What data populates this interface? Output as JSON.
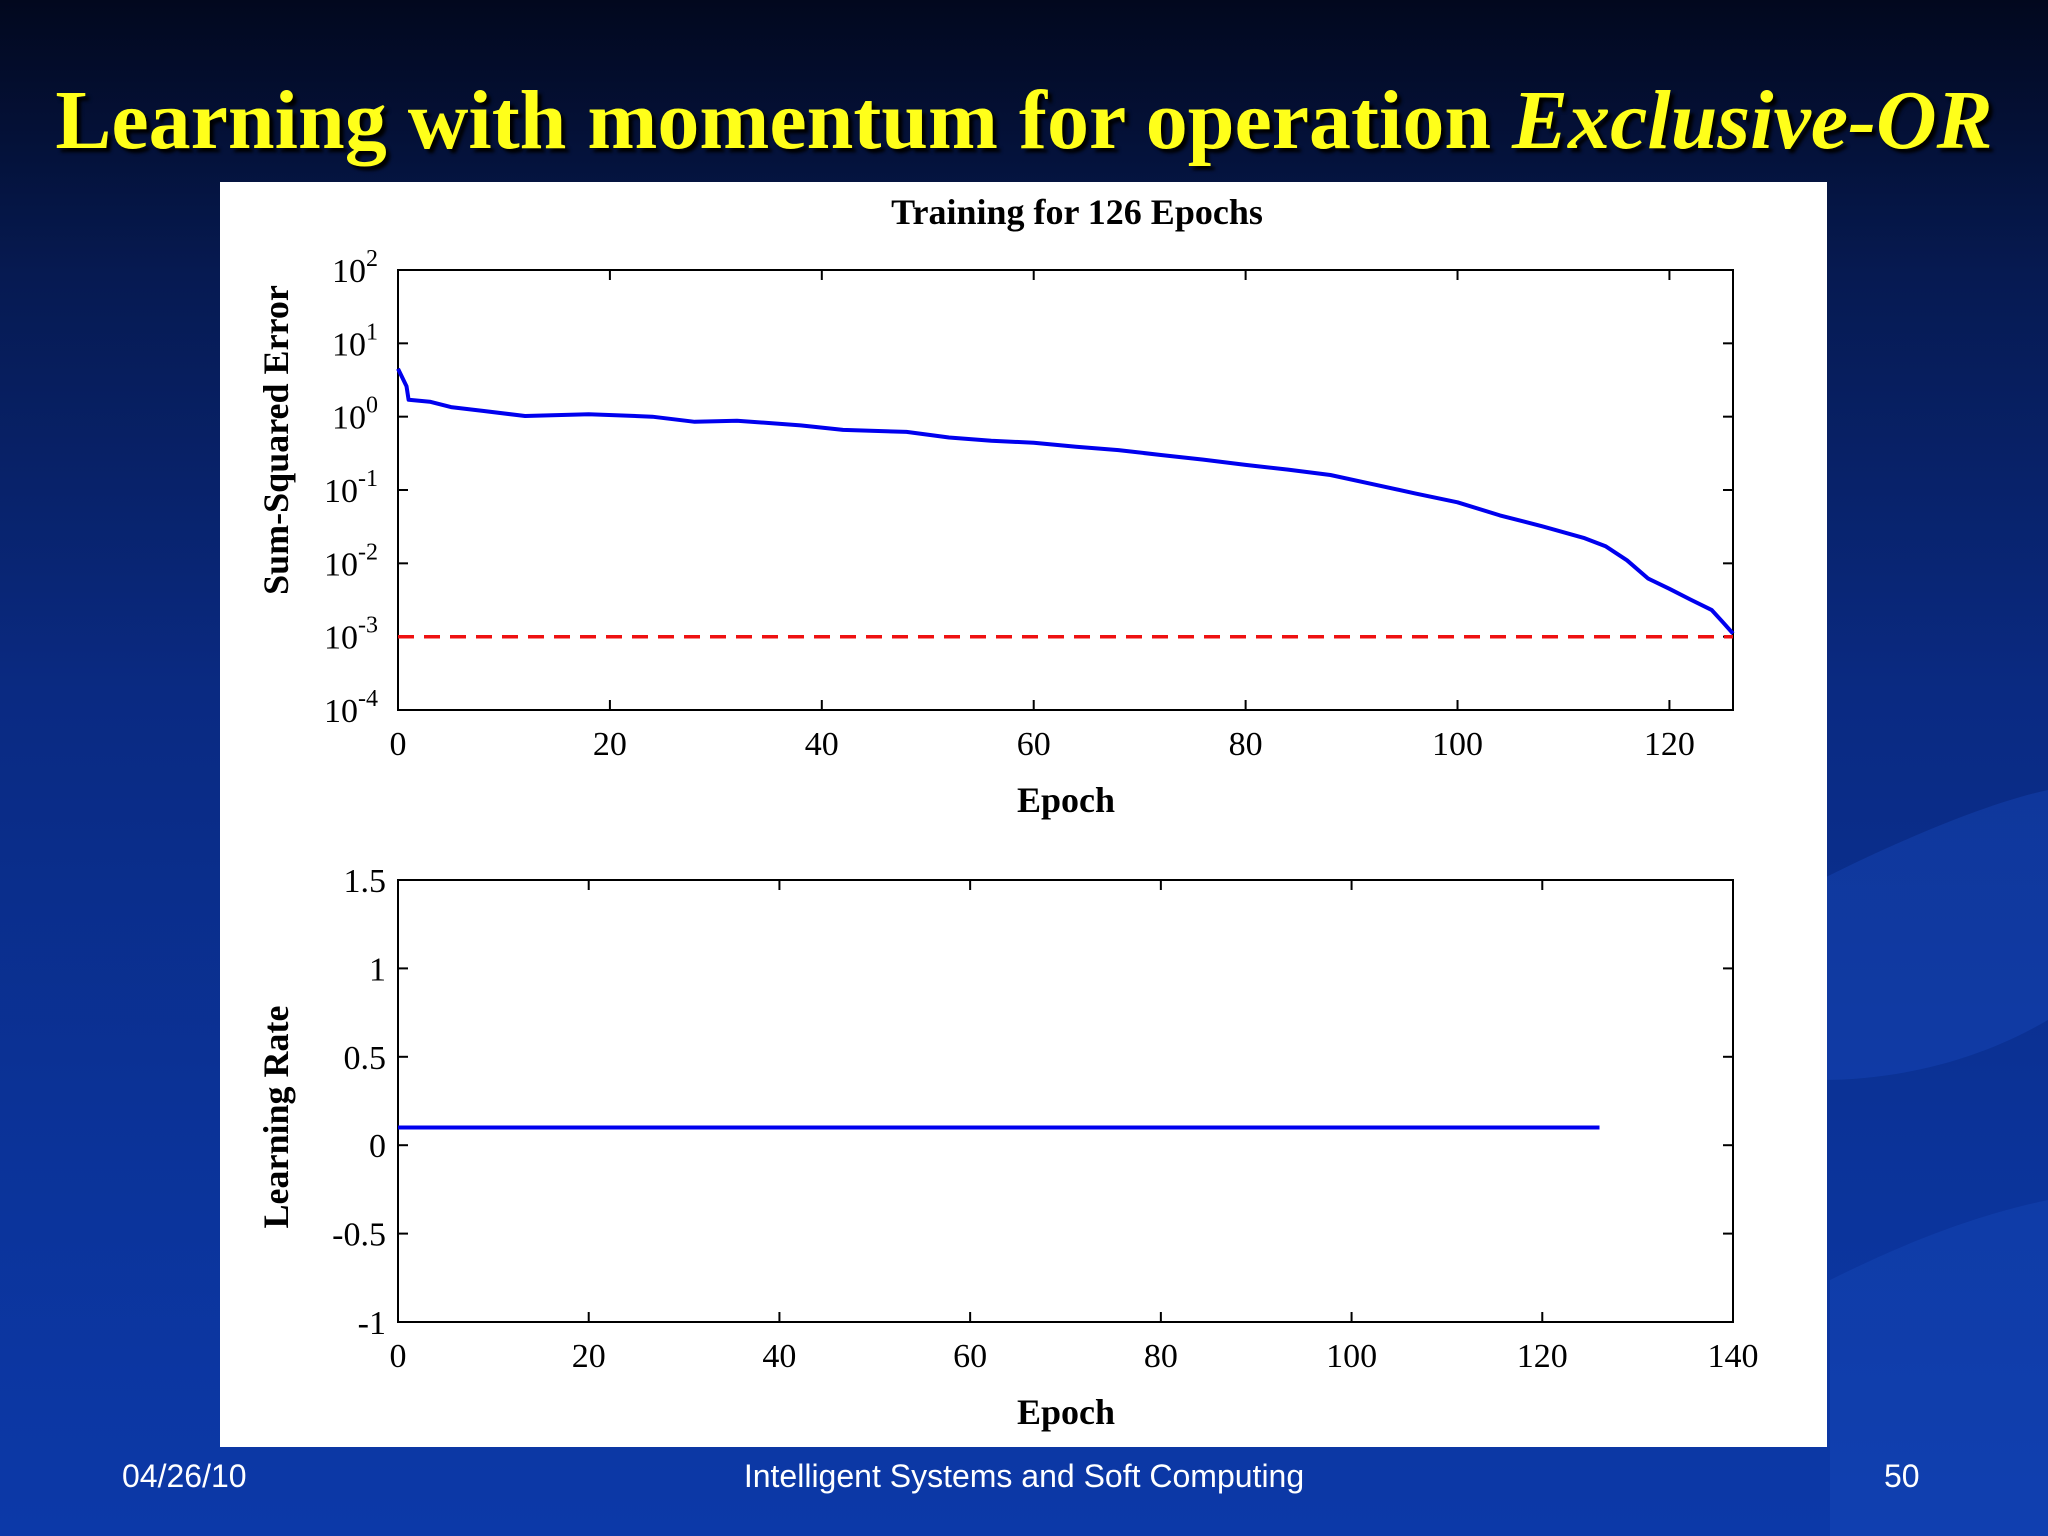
{
  "slide": {
    "title_main": "Learning with momentum for operation ",
    "title_emph": "Exclusive-OR",
    "footer_date": "04/26/10",
    "footer_course": "Intelligent Systems and Soft Computing",
    "footer_page": "50"
  },
  "colors": {
    "title": "#ffff1a",
    "series_line": "#0000ee",
    "goal_line": "#ee1111",
    "axes": "#000000"
  },
  "chart_data": [
    {
      "type": "line",
      "title": "Training for 126 Epochs",
      "xlabel": "Epoch",
      "ylabel": "Sum-Squared Error",
      "xlim": [
        0,
        126
      ],
      "ylim": [
        0.0001,
        100
      ],
      "yscale": "log",
      "x_ticks": [
        0,
        20,
        40,
        60,
        80,
        100,
        120
      ],
      "y_ticks": [
        {
          "base": "10",
          "exp": "2"
        },
        {
          "base": "10",
          "exp": "1"
        },
        {
          "base": "10",
          "exp": "0"
        },
        {
          "base": "10",
          "exp": "-1"
        },
        {
          "base": "10",
          "exp": "-2"
        },
        {
          "base": "10",
          "exp": "-3"
        },
        {
          "base": "10",
          "exp": "-4"
        }
      ],
      "grid": false,
      "series": [
        {
          "style": "solid",
          "x": [
            0,
            0.8,
            1,
            3,
            5,
            8,
            12,
            18,
            24,
            28,
            32,
            38,
            42,
            48,
            52,
            56,
            60,
            64,
            68,
            72,
            76,
            80,
            84,
            88,
            92,
            96,
            100,
            104,
            108,
            112,
            114,
            116,
            118,
            120,
            122,
            124,
            125,
            126
          ],
          "y": [
            4.5,
            2.6,
            1.7,
            1.6,
            1.35,
            1.2,
            1.02,
            1.08,
            1.0,
            0.85,
            0.88,
            0.76,
            0.66,
            0.62,
            0.52,
            0.47,
            0.44,
            0.39,
            0.35,
            0.3,
            0.26,
            0.22,
            0.19,
            0.16,
            0.12,
            0.09,
            0.068,
            0.045,
            0.032,
            0.022,
            0.017,
            0.011,
            0.0062,
            0.0045,
            0.0032,
            0.0023,
            0.0016,
            0.0011
          ]
        },
        {
          "style": "dashed",
          "x": [
            0,
            126
          ],
          "y": [
            0.001,
            0.001
          ]
        }
      ]
    },
    {
      "type": "line",
      "title": "",
      "xlabel": "Epoch",
      "ylabel": "Learning Rate",
      "xlim": [
        0,
        140
      ],
      "ylim": [
        -1,
        1.5
      ],
      "x_ticks": [
        0,
        20,
        40,
        60,
        80,
        100,
        120,
        140
      ],
      "y_ticks": [
        "1.5",
        "1",
        "0.5",
        "0",
        "-0.5",
        "-1"
      ],
      "grid": false,
      "series": [
        {
          "style": "solid",
          "x": [
            0,
            126
          ],
          "y": [
            0.1,
            0.1
          ]
        }
      ]
    }
  ]
}
